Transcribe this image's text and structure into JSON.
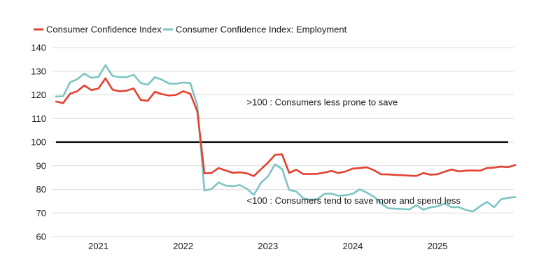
{
  "chart_data": {
    "type": "line",
    "title": "",
    "xlabel": "",
    "ylabel": "",
    "ylim": [
      60,
      140
    ],
    "yticks": [
      60,
      70,
      80,
      90,
      100,
      110,
      120,
      130,
      140
    ],
    "xlim": [
      "2020-07",
      "2025-11"
    ],
    "xticks": [
      {
        "label": "2021",
        "at": "2021-01"
      },
      {
        "label": "2022",
        "at": "2022-01"
      },
      {
        "label": "2023",
        "at": "2023-01"
      },
      {
        "label": "2024",
        "at": "2024-01"
      },
      {
        "label": "2025",
        "at": "2025-01"
      }
    ],
    "grid": "horizontal",
    "legend_position": "top-left",
    "reference_line": {
      "y": 100,
      "color": "#000000"
    },
    "annotations": [
      {
        "text": ">100 : Consumers less prone to save",
        "x": "2022-10",
        "y": 115.5
      },
      {
        "text": "<100 : Consumers tend to save more and spend less",
        "x": "2022-10",
        "y": 74
      }
    ],
    "series": [
      {
        "name": "Consumer Confidence Index",
        "color": "#e2422f",
        "points": [
          [
            "2020-07",
            117.2
          ],
          [
            "2020-08",
            116.5
          ],
          [
            "2020-09",
            120.5
          ],
          [
            "2020-10",
            121.5
          ],
          [
            "2020-11",
            124.0
          ],
          [
            "2020-12",
            122.0
          ],
          [
            "2021-01",
            122.7
          ],
          [
            "2021-02",
            127.0
          ],
          [
            "2021-03",
            122.2
          ],
          [
            "2021-04",
            121.5
          ],
          [
            "2021-05",
            121.8
          ],
          [
            "2021-06",
            122.7
          ],
          [
            "2021-07",
            117.8
          ],
          [
            "2021-08",
            117.5
          ],
          [
            "2021-09",
            121.3
          ],
          [
            "2021-10",
            120.3
          ],
          [
            "2021-11",
            119.7
          ],
          [
            "2021-12",
            120.0
          ],
          [
            "2022-01",
            121.5
          ],
          [
            "2022-02",
            120.5
          ],
          [
            "2022-03",
            113.0
          ],
          [
            "2022-04",
            86.8
          ],
          [
            "2022-05",
            86.9
          ],
          [
            "2022-06",
            89.0
          ],
          [
            "2022-07",
            88.0
          ],
          [
            "2022-08",
            87.0
          ],
          [
            "2022-09",
            87.2
          ],
          [
            "2022-10",
            86.8
          ],
          [
            "2022-11",
            85.6
          ],
          [
            "2022-12",
            88.5
          ],
          [
            "2023-01",
            91.3
          ],
          [
            "2023-02",
            94.6
          ],
          [
            "2023-03",
            94.8
          ],
          [
            "2023-04",
            87.0
          ],
          [
            "2023-05",
            88.3
          ],
          [
            "2023-06",
            86.5
          ],
          [
            "2023-07",
            86.5
          ],
          [
            "2023-08",
            86.6
          ],
          [
            "2023-09",
            87.1
          ],
          [
            "2023-10",
            87.8
          ],
          [
            "2023-11",
            86.9
          ],
          [
            "2023-12",
            87.6
          ],
          [
            "2024-01",
            88.8
          ],
          [
            "2024-02",
            89.0
          ],
          [
            "2024-03",
            89.3
          ],
          [
            "2024-04",
            88.1
          ],
          [
            "2024-05",
            86.4
          ],
          [
            "2024-06",
            86.3
          ],
          [
            "2024-07",
            86.1
          ],
          [
            "2024-08",
            86.0
          ],
          [
            "2024-09",
            85.8
          ],
          [
            "2024-10",
            85.7
          ],
          [
            "2024-11",
            86.9
          ],
          [
            "2024-12",
            86.2
          ],
          [
            "2025-01",
            86.4
          ],
          [
            "2025-02",
            87.5
          ],
          [
            "2025-03",
            88.4
          ],
          [
            "2025-04",
            87.6
          ],
          [
            "2025-05",
            87.9
          ],
          [
            "2025-06",
            88.0
          ],
          [
            "2025-07",
            87.9
          ],
          [
            "2025-08",
            89.0
          ],
          [
            "2025-09",
            89.2
          ],
          [
            "2025-10",
            89.6
          ],
          [
            "2025-11",
            89.4
          ],
          [
            "2025-12",
            90.3
          ]
        ]
      },
      {
        "name": "Consumer Confidence Index: Employment",
        "color": "#7ec4c4",
        "points": [
          [
            "2020-07",
            119.3
          ],
          [
            "2020-08",
            119.4
          ],
          [
            "2020-09",
            125.3
          ],
          [
            "2020-10",
            126.6
          ],
          [
            "2020-11",
            129.0
          ],
          [
            "2020-12",
            127.2
          ],
          [
            "2021-01",
            127.6
          ],
          [
            "2021-02",
            132.6
          ],
          [
            "2021-03",
            128.0
          ],
          [
            "2021-04",
            127.5
          ],
          [
            "2021-05",
            127.5
          ],
          [
            "2021-06",
            128.5
          ],
          [
            "2021-07",
            125.0
          ],
          [
            "2021-08",
            124.3
          ],
          [
            "2021-09",
            127.5
          ],
          [
            "2021-10",
            126.4
          ],
          [
            "2021-11",
            124.8
          ],
          [
            "2021-12",
            124.7
          ],
          [
            "2022-01",
            125.2
          ],
          [
            "2022-02",
            125.0
          ],
          [
            "2022-03",
            115.6
          ],
          [
            "2022-04",
            79.5
          ],
          [
            "2022-05",
            80.1
          ],
          [
            "2022-06",
            82.9
          ],
          [
            "2022-07",
            81.6
          ],
          [
            "2022-08",
            81.3
          ],
          [
            "2022-09",
            81.8
          ],
          [
            "2022-10",
            80.3
          ],
          [
            "2022-11",
            77.7
          ],
          [
            "2022-12",
            82.7
          ],
          [
            "2023-01",
            85.5
          ],
          [
            "2023-02",
            90.6
          ],
          [
            "2023-03",
            88.6
          ],
          [
            "2023-04",
            79.7
          ],
          [
            "2023-05",
            79.1
          ],
          [
            "2023-06",
            76.2
          ],
          [
            "2023-07",
            75.6
          ],
          [
            "2023-08",
            75.9
          ],
          [
            "2023-09",
            78.1
          ],
          [
            "2023-10",
            78.2
          ],
          [
            "2023-11",
            77.3
          ],
          [
            "2023-12",
            77.5
          ],
          [
            "2024-01",
            78.1
          ],
          [
            "2024-02",
            80.0
          ],
          [
            "2024-03",
            78.6
          ],
          [
            "2024-04",
            76.9
          ],
          [
            "2024-05",
            74.1
          ],
          [
            "2024-06",
            72.0
          ],
          [
            "2024-07",
            71.8
          ],
          [
            "2024-08",
            71.7
          ],
          [
            "2024-09",
            71.5
          ],
          [
            "2024-10",
            73.3
          ],
          [
            "2024-11",
            71.4
          ],
          [
            "2024-12",
            72.4
          ],
          [
            "2025-01",
            72.8
          ],
          [
            "2025-02",
            74.0
          ],
          [
            "2025-03",
            72.4
          ],
          [
            "2025-04",
            72.5
          ],
          [
            "2025-05",
            71.3
          ],
          [
            "2025-06",
            70.6
          ],
          [
            "2025-07",
            72.8
          ],
          [
            "2025-08",
            74.7
          ],
          [
            "2025-09",
            72.4
          ],
          [
            "2025-10",
            75.8
          ],
          [
            "2025-11",
            76.4
          ],
          [
            "2025-12",
            76.7
          ]
        ]
      }
    ]
  }
}
